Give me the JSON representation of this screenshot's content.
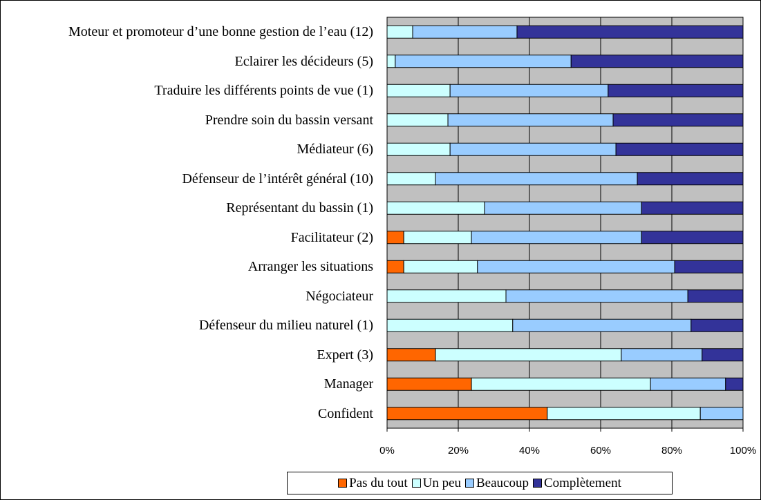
{
  "chart_data": {
    "type": "stacked-bar-horizontal",
    "categories": [
      "Moteur et promoteur d’une bonne gestion de l’eau (12)",
      "Eclairer les décideurs (5)",
      "Traduire les différents points de vue (1)",
      "Prendre soin du bassin versant",
      "Médiateur (6)",
      "Défenseur de l’intérêt général (10)",
      "Représentant du bassin (1)",
      "Facilitateur (2)",
      "Arranger les situations",
      "Négociateur",
      "Défenseur du milieu naturel (1)",
      "Expert (3)",
      "Manager",
      "Confident"
    ],
    "series": [
      {
        "name": "Pas du tout",
        "color": "#ff6600",
        "values": [
          0,
          0,
          0,
          0,
          0,
          0,
          0,
          4.7,
          4.7,
          0,
          0,
          13.6,
          23.7,
          45.0
        ]
      },
      {
        "name": "Un peu",
        "color": "#ccffff",
        "values": [
          7.2,
          2.3,
          17.7,
          17.1,
          17.7,
          13.6,
          27.4,
          19.0,
          20.7,
          33.4,
          35.3,
          52.2,
          50.3,
          43.0
        ]
      },
      {
        "name": "Beaucoup",
        "color": "#99ccff",
        "values": [
          29.3,
          49.4,
          44.4,
          46.4,
          46.6,
          56.7,
          44.1,
          47.8,
          55.4,
          51.1,
          50.1,
          22.7,
          21.1,
          12.0
        ]
      },
      {
        "name": "Complètement",
        "color": "#333399",
        "values": [
          63.5,
          48.3,
          37.9,
          36.5,
          35.7,
          29.7,
          28.5,
          28.5,
          19.2,
          15.5,
          14.6,
          11.5,
          4.9,
          0
        ]
      }
    ],
    "xlim": [
      0,
      100
    ],
    "xticks": [
      {
        "value": 0,
        "label": "0%"
      },
      {
        "value": 20,
        "label": "20%"
      },
      {
        "value": 40,
        "label": "40%"
      },
      {
        "value": 60,
        "label": "60%"
      },
      {
        "value": 80,
        "label": "80%"
      },
      {
        "value": 100,
        "label": "100%"
      }
    ],
    "grid": true,
    "legend": "bottom"
  }
}
